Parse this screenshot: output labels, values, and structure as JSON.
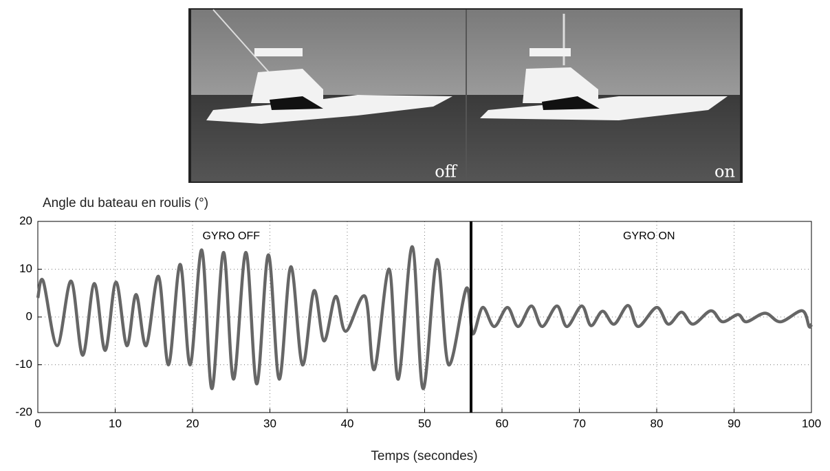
{
  "photo": {
    "labels": [
      "off",
      "on"
    ]
  },
  "chart_data": {
    "type": "line",
    "title": "Angle du bateau en roulis (°)",
    "x_label": "Temps (secondes)",
    "annotations": [
      "GYRO OFF",
      "GYRO ON"
    ],
    "divider_x": 56,
    "series": [
      {
        "name": "Roulis",
        "color": "#666666",
        "x": [
          0,
          0.7,
          2.5,
          4.3,
          5.8,
          7.3,
          8.7,
          10.1,
          11.5,
          12.7,
          14,
          15.6,
          16.9,
          18.4,
          19.7,
          21.2,
          22.5,
          24,
          25.3,
          26.9,
          28.3,
          29.8,
          31.2,
          32.7,
          34.2,
          35.7,
          37,
          38.5,
          39.8,
          42.3,
          43.5,
          45.4,
          46.6,
          48.4,
          49.8,
          51.6,
          53.1,
          55.4,
          56.2,
          57.5,
          59,
          60.7,
          62.1,
          63.8,
          65.2,
          67.1,
          68.4,
          70.3,
          71.5,
          73,
          74.5,
          76.3,
          77.6,
          80,
          81.5,
          83.2,
          84.7,
          87,
          88.5,
          90.5,
          91.6,
          94,
          96,
          98.8,
          99.7,
          100
        ],
        "values": [
          4,
          7.5,
          -6,
          7.5,
          -8,
          7,
          -7,
          7.3,
          -6,
          4.7,
          -6,
          8.5,
          -10,
          11,
          -10,
          14,
          -15,
          13.5,
          -13,
          13.5,
          -14,
          13,
          -13,
          10.5,
          -10,
          5.5,
          -5,
          4.3,
          -3,
          4.3,
          -11,
          10,
          -13,
          14.7,
          -15,
          12,
          -10,
          6,
          -3.5,
          2,
          -2,
          2,
          -2,
          2.3,
          -2,
          2.3,
          -2,
          2.3,
          -1.8,
          1.2,
          -1.5,
          2.4,
          -2,
          2,
          -1.5,
          1,
          -1.5,
          1.3,
          -1,
          0.5,
          -1,
          0.8,
          -1,
          1.3,
          -2,
          -1.5
        ]
      }
    ],
    "xlim": [
      0,
      100
    ],
    "xticks": [
      0,
      10,
      20,
      30,
      40,
      50,
      60,
      70,
      80,
      90,
      100
    ],
    "ylim": [
      -20,
      20
    ],
    "yticks": [
      -20,
      -10,
      0,
      10,
      20
    ],
    "grid": true
  }
}
